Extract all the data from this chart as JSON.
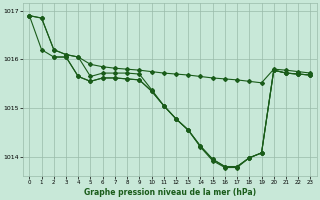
{
  "xlabel": "Graphe pression niveau de la mer (hPa)",
  "ylim": [
    1013.6,
    1017.15
  ],
  "xlim": [
    -0.5,
    23.5
  ],
  "yticks": [
    1014,
    1015,
    1016,
    1017
  ],
  "xticks": [
    0,
    1,
    2,
    3,
    4,
    5,
    6,
    7,
    8,
    9,
    10,
    11,
    12,
    13,
    14,
    15,
    16,
    17,
    18,
    19,
    20,
    21,
    22,
    23
  ],
  "background_color": "#c8e8d8",
  "grid_color": "#99bbaa",
  "line_color": "#1a5c1a",
  "series": [
    {
      "x": [
        0,
        1,
        2,
        3,
        4,
        5,
        6,
        7,
        8,
        9,
        10,
        11,
        12,
        13,
        14,
        15,
        16,
        17,
        18,
        19,
        20,
        21,
        22,
        23
      ],
      "y": [
        1016.9,
        1016.85,
        1016.2,
        1016.1,
        1016.05,
        1015.9,
        1015.85,
        1015.82,
        1015.8,
        1015.78,
        1015.75,
        1015.72,
        1015.7,
        1015.68,
        1015.65,
        1015.62,
        1015.6,
        1015.58,
        1015.55,
        1015.52,
        1015.8,
        1015.78,
        1015.75,
        1015.72
      ]
    },
    {
      "x": [
        0,
        1,
        2,
        3,
        4,
        5,
        6,
        7,
        8,
        9,
        10,
        11,
        12,
        13,
        14,
        15,
        16,
        17,
        18,
        19,
        20,
        21,
        22,
        23
      ],
      "y": [
        1016.9,
        1016.2,
        1016.05,
        1016.05,
        1015.65,
        1015.55,
        1015.62,
        1015.62,
        1015.6,
        1015.58,
        1015.35,
        1015.05,
        1014.78,
        1014.55,
        1014.22,
        1013.95,
        1013.8,
        1013.8,
        1013.98,
        1014.08,
        1015.78,
        1015.72,
        1015.7,
        1015.68
      ]
    },
    {
      "x": [
        0,
        1,
        2,
        3,
        4,
        5,
        6,
        7,
        8,
        9,
        10,
        11,
        12,
        13,
        14,
        15,
        16,
        17,
        18,
        19,
        20,
        21,
        22,
        23
      ],
      "y": [
        1016.9,
        1016.85,
        1016.2,
        1016.1,
        1016.05,
        1015.65,
        1015.72,
        1015.72,
        1015.72,
        1015.7,
        1015.38,
        1015.05,
        1014.78,
        1014.55,
        1014.2,
        1013.92,
        1013.78,
        1013.78,
        1013.98,
        1014.08,
        1015.78,
        1015.72,
        1015.7,
        1015.68
      ]
    },
    {
      "x": [
        2,
        3,
        4,
        5,
        6,
        7,
        8,
        9,
        10,
        11,
        12,
        13,
        14,
        15,
        16,
        17,
        18,
        19,
        20,
        21,
        22,
        23
      ],
      "y": [
        1016.05,
        1016.05,
        1015.65,
        1015.55,
        1015.62,
        1015.62,
        1015.6,
        1015.58,
        1015.35,
        1015.05,
        1014.78,
        1014.55,
        1014.22,
        1013.95,
        1013.8,
        1013.8,
        1013.98,
        1014.08,
        1015.78,
        1015.72,
        1015.7,
        1015.68
      ]
    }
  ]
}
